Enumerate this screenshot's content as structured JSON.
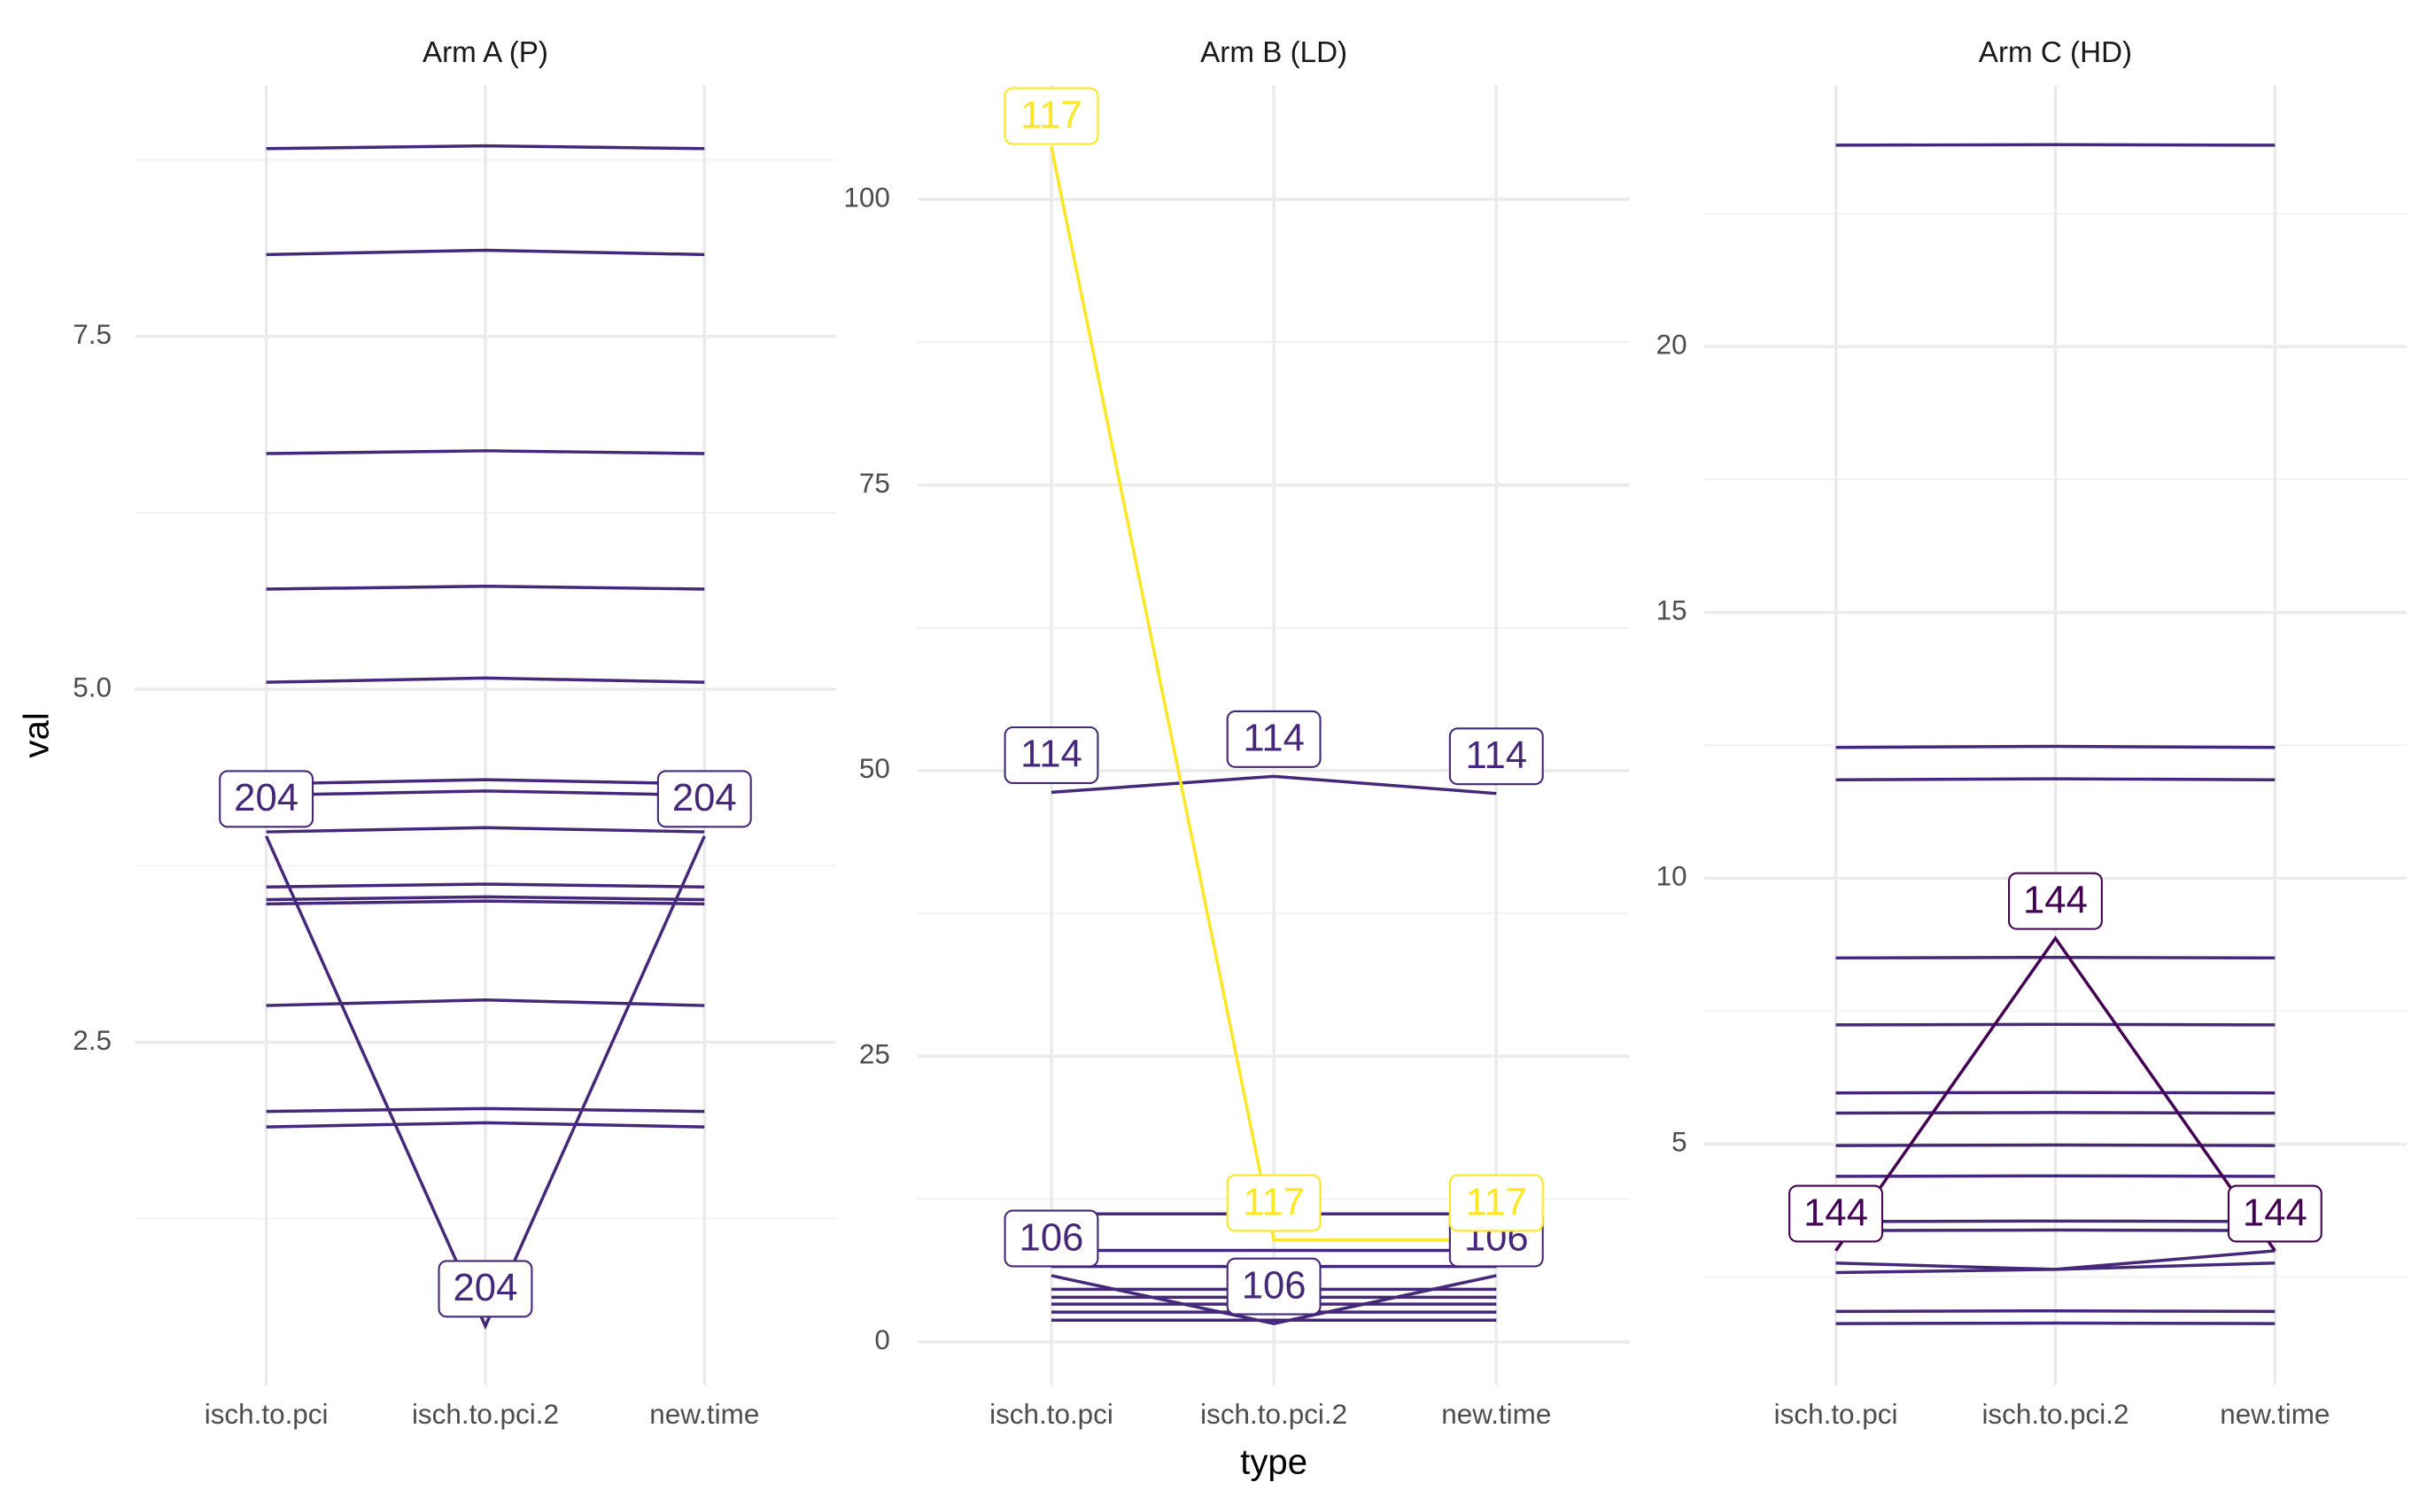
{
  "chart_data": [
    {
      "type": "line",
      "title": "Arm A (P)",
      "y_label": "val",
      "legend": false,
      "categories": [
        "isch.to.pci",
        "isch.to.pci.2",
        "new.time"
      ],
      "ylim": [
        0.07,
        9.28
      ],
      "yticks": [
        2.5,
        {
          "value": 5,
          "label": "5.0"
        },
        7.5
      ],
      "minor_yticks": [
        1.25,
        3.75,
        6.25,
        8.75
      ],
      "grid": true,
      "color": "#46287a",
      "series": [
        {
          "values": [
            8.83,
            8.85,
            8.83
          ]
        },
        {
          "values": [
            8.08,
            8.11,
            8.08
          ]
        },
        {
          "values": [
            6.67,
            6.69,
            6.67
          ]
        },
        {
          "values": [
            5.71,
            5.73,
            5.71
          ]
        },
        {
          "values": [
            5.05,
            5.08,
            5.05
          ]
        },
        {
          "values": [
            4.33,
            4.36,
            4.33
          ]
        },
        {
          "values": [
            4.25,
            4.28,
            4.25
          ]
        },
        {
          "values": [
            3.99,
            4.02,
            3.99
          ]
        },
        {
          "values": [
            3.6,
            3.62,
            3.6
          ]
        },
        {
          "values": [
            3.51,
            3.53,
            3.51
          ]
        },
        {
          "values": [
            3.48,
            3.5,
            3.48
          ]
        },
        {
          "values": [
            2.76,
            2.8,
            2.76
          ]
        },
        {
          "values": [
            2.01,
            2.03,
            2.01
          ]
        },
        {
          "values": [
            1.9,
            1.93,
            1.9
          ]
        },
        {
          "name": "204",
          "color": "#46287a",
          "values": [
            3.96,
            0.49,
            3.96
          ]
        }
      ]
    },
    {
      "type": "line",
      "title": "Arm B (LD)",
      "x_label": "type",
      "legend": false,
      "categories": [
        "isch.to.pci",
        "isch.to.pci.2",
        "new.time"
      ],
      "ylim": [
        -3.8,
        110
      ],
      "yticks": [
        0,
        25,
        50,
        75,
        100
      ],
      "minor_yticks": [
        12.5,
        37.5,
        62.5,
        87.5
      ],
      "grid": true,
      "color": "#46287a",
      "series": [
        {
          "values": [
            11.2,
            11.2,
            11.2
          ]
        },
        {
          "values": [
            8.0,
            8.0,
            8.0
          ]
        },
        {
          "values": [
            6.6,
            6.6,
            6.6
          ]
        },
        {
          "values": [
            4.6,
            4.6,
            4.6
          ]
        },
        {
          "values": [
            3.9,
            3.9,
            3.9
          ]
        },
        {
          "values": [
            3.3,
            3.3,
            3.3
          ]
        },
        {
          "values": [
            2.6,
            2.6,
            2.6
          ]
        },
        {
          "values": [
            1.9,
            1.9,
            1.9
          ]
        },
        {
          "name": "114",
          "color": "#46287a",
          "values": [
            48.1,
            49.5,
            48.0
          ]
        },
        {
          "name": "106",
          "color": "#46287a",
          "values": [
            5.8,
            1.6,
            5.8
          ]
        },
        {
          "name": "117",
          "color": "#fde725",
          "values": [
            104.6,
            8.9,
            8.9
          ]
        }
      ]
    },
    {
      "type": "line",
      "title": "Arm C (HD)",
      "legend": false,
      "categories": [
        "isch.to.pci",
        "isch.to.pci.2",
        "new.time"
      ],
      "ylim": [
        0.46,
        24.92
      ],
      "yticks": [
        5,
        10,
        15,
        20
      ],
      "minor_yticks": [
        2.5,
        7.5,
        12.5,
        17.5,
        22.5
      ],
      "grid": true,
      "color": "#46287a",
      "series": [
        {
          "values": [
            23.79,
            23.8,
            23.79
          ]
        },
        {
          "values": [
            12.46,
            12.48,
            12.46
          ]
        },
        {
          "values": [
            11.85,
            11.87,
            11.85
          ]
        },
        {
          "values": [
            8.5,
            8.51,
            8.5
          ]
        },
        {
          "values": [
            7.24,
            7.25,
            7.24
          ]
        },
        {
          "values": [
            5.96,
            5.97,
            5.96
          ]
        },
        {
          "values": [
            5.58,
            5.59,
            5.58
          ]
        },
        {
          "values": [
            4.97,
            4.98,
            4.97
          ]
        },
        {
          "values": [
            4.39,
            4.4,
            4.39
          ]
        },
        {
          "values": [
            3.54,
            3.55,
            3.54
          ]
        },
        {
          "values": [
            3.37,
            3.38,
            3.37
          ]
        },
        {
          "values": [
            2.76,
            2.64,
            2.99
          ]
        },
        {
          "values": [
            2.58,
            2.64,
            2.76
          ]
        },
        {
          "values": [
            1.85,
            1.86,
            1.85
          ]
        },
        {
          "values": [
            1.62,
            1.63,
            1.62
          ]
        },
        {
          "name": "144",
          "color": "#440154",
          "values": [
            2.99,
            8.87,
            2.99
          ]
        }
      ]
    }
  ]
}
